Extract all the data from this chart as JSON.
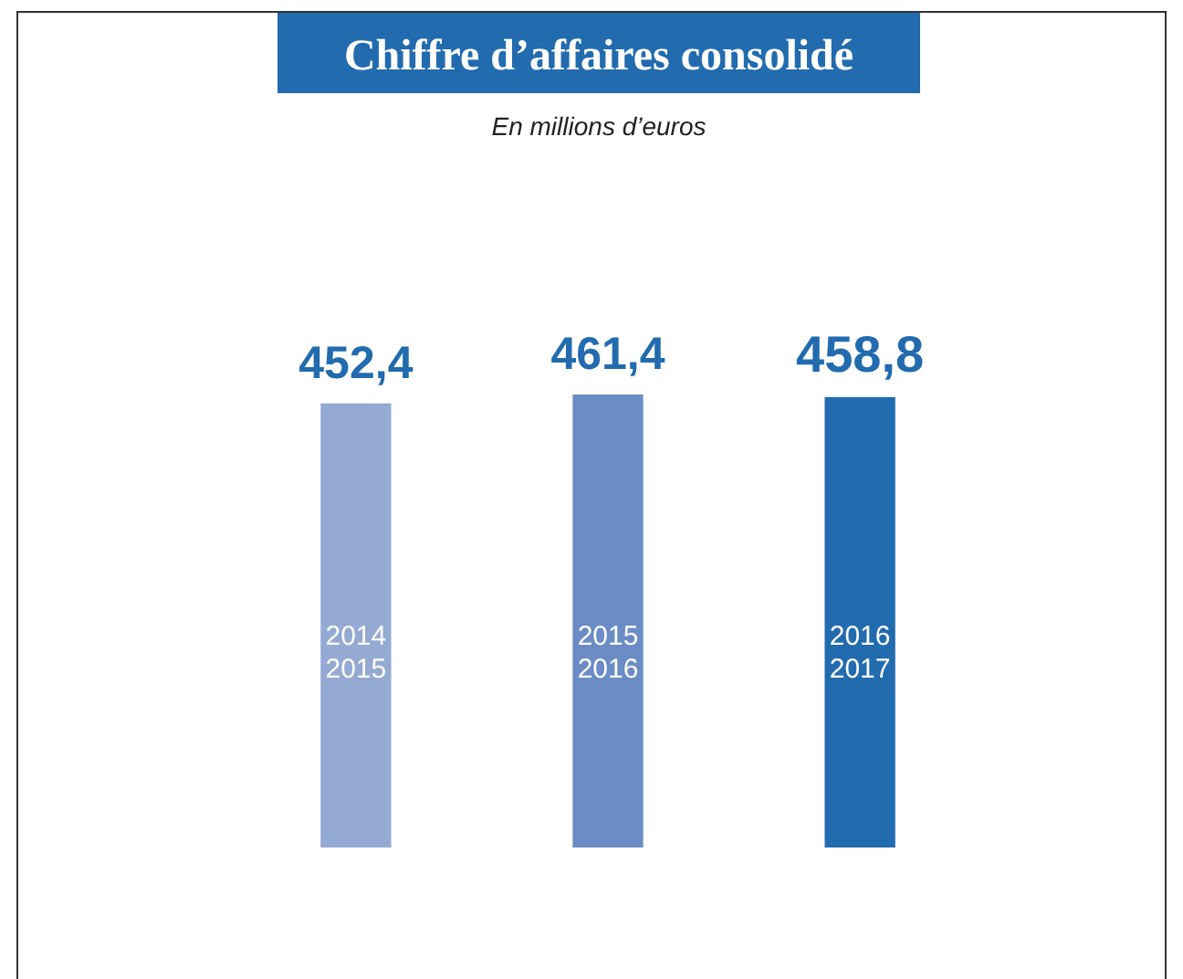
{
  "chart_data": {
    "type": "bar",
    "title": "Chiffre d’affaires consolidé",
    "subtitle": "En millions d’euros",
    "categories": [
      "2014\n2015",
      "2015\n2016",
      "2016\n2017"
    ],
    "values": [
      452.4,
      461.4,
      458.8
    ],
    "colors": [
      "#94aad3",
      "#6b8cc4",
      "#226baf"
    ],
    "value_labels": [
      "452,4",
      "461,4",
      "458,8"
    ]
  }
}
